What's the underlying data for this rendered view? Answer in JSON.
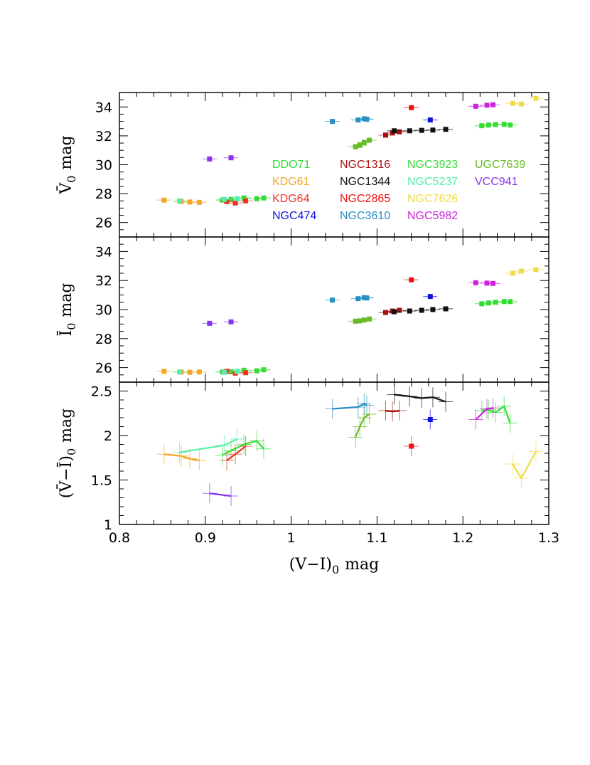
{
  "chart_data": {
    "type": "scatter",
    "figure": "three stacked panels sharing the (V-I)0 axis",
    "x_axis": {
      "label": "(V−I)",
      "label_subscript": "0",
      "label_suffix": "mag",
      "xlim": [
        0.8,
        1.3
      ],
      "ticks": [
        0.8,
        0.9,
        1.0,
        1.1,
        1.2,
        1.3
      ],
      "tick_labels": [
        "0.8",
        "0.9",
        "1",
        "1.1",
        "1.2",
        "1.3"
      ]
    },
    "panels": [
      {
        "id": "V0",
        "ylabel": "V̄",
        "ylabel_subscript": "0",
        "ylabel_suffix": "mag",
        "ylim": [
          25,
          35
        ],
        "yticks": [
          26,
          28,
          30,
          32,
          34
        ],
        "ytick_labels": [
          "26",
          "28",
          "30",
          "32",
          "34"
        ]
      },
      {
        "id": "I0",
        "ylabel": "Ī",
        "ylabel_subscript": "0",
        "ylabel_suffix": "mag",
        "ylim": [
          25,
          35
        ],
        "yticks": [
          26,
          28,
          30,
          32,
          34
        ],
        "ytick_labels": [
          "26",
          "28",
          "30",
          "32",
          "34"
        ]
      },
      {
        "id": "VminusI",
        "ylabel": "(V̄−Ī)",
        "ylabel_subscript": "0",
        "ylabel_suffix": "mag",
        "ylim": [
          1,
          2.6
        ],
        "yticks": [
          1,
          1.5,
          2,
          2.5
        ],
        "ytick_labels": [
          "1",
          "1.5",
          "2",
          "2.5"
        ]
      }
    ],
    "series": [
      {
        "name": "DDO71",
        "color": "#33dd33",
        "x": [
          0.92,
          0.93,
          0.945,
          0.96,
          0.968
        ],
        "V": [
          27.55,
          27.6,
          27.7,
          27.65,
          27.7
        ],
        "I": [
          25.7,
          25.72,
          25.82,
          25.78,
          25.85
        ],
        "VI": [
          1.78,
          1.83,
          1.9,
          1.94,
          1.85
        ]
      },
      {
        "name": "KDG61",
        "color": "#f5a623",
        "x": [
          0.852,
          0.872,
          0.882,
          0.893
        ],
        "V": [
          27.55,
          27.45,
          27.42,
          27.4
        ],
        "I": [
          25.75,
          25.7,
          25.68,
          25.7
        ],
        "VI": [
          1.79,
          1.77,
          1.74,
          1.72
        ]
      },
      {
        "name": "KDG64",
        "color": "#ee3322",
        "x": [
          0.925,
          0.935,
          0.947
        ],
        "V": [
          27.45,
          27.35,
          27.5
        ],
        "I": [
          25.75,
          25.62,
          25.65
        ],
        "VI": [
          1.72,
          1.79,
          1.88
        ]
      },
      {
        "name": "NGC474",
        "color": "#1111dd",
        "x": [
          1.162
        ],
        "V": [
          33.1
        ],
        "I": [
          30.9
        ],
        "VI": [
          2.18
        ]
      },
      {
        "name": "NGC1316",
        "color": "#aa1111",
        "x": [
          1.11,
          1.118,
          1.126
        ],
        "V": [
          32.05,
          32.2,
          32.28
        ],
        "I": [
          29.8,
          29.9,
          29.95
        ],
        "VI": [
          2.28,
          2.27,
          2.28
        ]
      },
      {
        "name": "NGC1344",
        "color": "#111111",
        "x": [
          1.12,
          1.138,
          1.152,
          1.165,
          1.18
        ],
        "V": [
          32.35,
          32.35,
          32.38,
          32.4,
          32.45
        ],
        "I": [
          29.85,
          29.9,
          29.95,
          30.0,
          30.05
        ],
        "VI": [
          2.46,
          2.44,
          2.42,
          2.43,
          2.38
        ]
      },
      {
        "name": "NGC2865",
        "color": "#ee1111",
        "x": [
          1.14
        ],
        "V": [
          33.95
        ],
        "I": [
          32.05
        ],
        "VI": [
          1.88
        ]
      },
      {
        "name": "NGC3610",
        "color": "#2a8fc1",
        "x": [
          1.048,
          1.078,
          1.085,
          1.088
        ],
        "V": [
          33.0,
          33.1,
          33.18,
          33.15
        ],
        "I": [
          30.65,
          30.75,
          30.82,
          30.8
        ],
        "VI": [
          2.3,
          2.32,
          2.36,
          2.34
        ]
      },
      {
        "name": "NGC3923",
        "color": "#33dd33",
        "x": [
          1.222,
          1.23,
          1.238,
          1.248,
          1.255
        ],
        "V": [
          32.7,
          32.75,
          32.78,
          32.8,
          32.75
        ],
        "I": [
          30.4,
          30.45,
          30.5,
          30.55,
          30.55
        ],
        "VI": [
          2.28,
          2.29,
          2.26,
          2.33,
          2.14
        ]
      },
      {
        "name": "NGC5237",
        "color": "#55eeaa",
        "x": [
          0.87,
          0.922,
          0.937
        ],
        "V": [
          27.5,
          27.6,
          27.65
        ],
        "I": [
          25.7,
          25.68,
          25.75
        ],
        "VI": [
          1.81,
          1.89,
          1.96
        ]
      },
      {
        "name": "NGC7626",
        "color": "#eedd44",
        "x": [
          1.258,
          1.268,
          1.285
        ],
        "V": [
          34.25,
          34.2,
          34.6
        ],
        "I": [
          32.5,
          32.65,
          32.75
        ],
        "VI": [
          1.68,
          1.52,
          1.82
        ]
      },
      {
        "name": "NGC5982",
        "color": "#cc22dd",
        "x": [
          1.215,
          1.228,
          1.235
        ],
        "V": [
          34.05,
          34.12,
          34.15
        ],
        "I": [
          31.85,
          31.82,
          31.8
        ],
        "VI": [
          2.18,
          2.3,
          2.31
        ]
      },
      {
        "name": "UGC7639",
        "color": "#66bb22",
        "x": [
          1.075,
          1.08,
          1.085,
          1.091
        ],
        "V": [
          31.25,
          31.35,
          31.55,
          31.7
        ],
        "I": [
          29.2,
          29.22,
          29.28,
          29.35
        ],
        "VI": [
          1.98,
          2.1,
          2.2,
          2.24
        ]
      },
      {
        "name": "VCC941",
        "color": "#8833ee",
        "x": [
          0.905,
          0.93
        ],
        "V": [
          30.4,
          30.48
        ],
        "I": [
          29.05,
          29.15
        ],
        "VI": [
          1.35,
          1.32
        ]
      }
    ],
    "legend": {
      "placement": "inside top panel, lower-right region",
      "columns": [
        [
          "DDO71",
          "KDG61",
          "KDG64",
          "NGC474"
        ],
        [
          "NGC1316",
          "NGC1344",
          "NGC2865",
          "NGC3610"
        ],
        [
          "NGC3923",
          "NGC5237",
          "NGC7626",
          "NGC5982"
        ],
        [
          "UGC7639",
          "VCC941"
        ]
      ]
    }
  }
}
